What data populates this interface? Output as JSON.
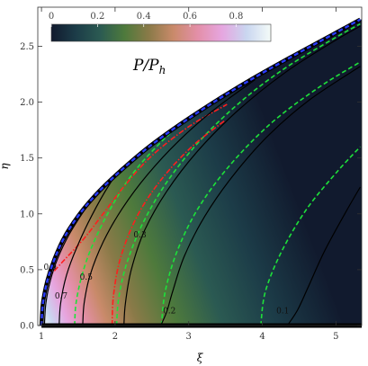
{
  "chart_data": {
    "type": "heatmap",
    "title": "",
    "xlabel": "ξ",
    "ylabel": "η",
    "xlim": [
      0.95,
      5.35
    ],
    "ylim": [
      0.0,
      2.85
    ],
    "x_ticks": [
      1,
      2,
      3,
      4,
      5
    ],
    "y_ticks": [
      0.0,
      0.5,
      1.0,
      1.5,
      2.0,
      2.5
    ],
    "x_tick_labels": [
      "1",
      "2",
      "3",
      "4",
      "5"
    ],
    "y_tick_labels": [
      "0.0",
      "0.5",
      "1.0",
      "1.5",
      "2.0",
      "2.5"
    ],
    "colorbar": {
      "label_main": "P/P",
      "label_sub": "h",
      "ticks": [
        0,
        0.2,
        0.4,
        0.6,
        0.8
      ],
      "tick_labels": [
        "0",
        "0.2",
        "0.4",
        "0.6",
        "0.8"
      ],
      "colors": [
        "#111a2e",
        "#1c3c48",
        "#2b5a52",
        "#4e7a3c",
        "#8a7a48",
        "#c98a6a",
        "#e38fa8",
        "#e6a6e0",
        "#c9d6f0",
        "#f4fbf8"
      ]
    },
    "boundary": {
      "description": "domain edge",
      "points": [
        [
          1.0,
          0.0
        ],
        [
          1.02,
          0.2
        ],
        [
          1.08,
          0.4
        ],
        [
          1.18,
          0.6
        ],
        [
          1.32,
          0.8
        ],
        [
          1.52,
          1.0
        ],
        [
          1.78,
          1.2
        ],
        [
          2.1,
          1.4
        ],
        [
          2.46,
          1.6
        ],
        [
          2.88,
          1.8
        ],
        [
          3.34,
          2.0
        ],
        [
          3.84,
          2.2
        ],
        [
          4.38,
          2.4
        ],
        [
          4.94,
          2.6
        ],
        [
          5.33,
          2.74
        ]
      ]
    },
    "solid_contours": [
      {
        "level": "0.9",
        "label": "0.9",
        "label_at": [
          1.03,
          0.5
        ],
        "points": [
          [
            1.04,
            0.0
          ],
          [
            1.06,
            0.2
          ],
          [
            1.12,
            0.4
          ],
          [
            1.22,
            0.6
          ],
          [
            1.38,
            0.82
          ],
          [
            1.6,
            1.05
          ]
        ]
      },
      {
        "level": "0.7",
        "label": "0.7",
        "label_at": [
          1.18,
          0.24
        ],
        "points": [
          [
            1.24,
            0.0
          ],
          [
            1.26,
            0.2
          ],
          [
            1.34,
            0.45
          ],
          [
            1.48,
            0.7
          ],
          [
            1.68,
            0.98
          ],
          [
            1.92,
            1.26
          ],
          [
            2.18,
            1.5
          ]
        ]
      },
      {
        "level": "0.5",
        "label": "0.5",
        "label_at": [
          1.52,
          0.41
        ],
        "points": [
          [
            1.56,
            0.0
          ],
          [
            1.58,
            0.2
          ],
          [
            1.66,
            0.45
          ],
          [
            1.84,
            0.75
          ],
          [
            2.1,
            1.05
          ],
          [
            2.44,
            1.35
          ],
          [
            2.86,
            1.65
          ],
          [
            3.34,
            1.93
          ],
          [
            3.9,
            2.2
          ]
        ]
      },
      {
        "level": "0.3",
        "label": "0.3",
        "label_at": [
          2.25,
          0.79
        ],
        "points": [
          [
            2.12,
            0.0
          ],
          [
            2.14,
            0.2
          ],
          [
            2.22,
            0.5
          ],
          [
            2.4,
            0.85
          ],
          [
            2.7,
            1.2
          ],
          [
            3.12,
            1.56
          ],
          [
            3.66,
            1.92
          ],
          [
            4.3,
            2.26
          ],
          [
            4.96,
            2.54
          ],
          [
            5.33,
            2.68
          ]
        ]
      },
      {
        "level": "0.2",
        "label": "0.2",
        "label_at": [
          2.65,
          0.11
        ],
        "points": [
          [
            2.62,
            0.0
          ],
          [
            2.7,
            0.12
          ],
          [
            2.78,
            0.3
          ],
          [
            2.94,
            0.62
          ],
          [
            3.22,
            0.98
          ],
          [
            3.6,
            1.34
          ],
          [
            4.08,
            1.7
          ],
          [
            4.64,
            2.02
          ],
          [
            5.33,
            2.32
          ]
        ]
      },
      {
        "level": "0.1",
        "label": "0.1",
        "label_at": [
          4.19,
          0.11
        ],
        "points": [
          [
            4.34,
            0.0
          ],
          [
            4.48,
            0.14
          ],
          [
            4.62,
            0.34
          ],
          [
            4.84,
            0.66
          ],
          [
            5.12,
            1.0
          ],
          [
            5.33,
            1.24
          ]
        ]
      }
    ],
    "green_dashed_contours": [
      {
        "points": [
          [
            1.45,
            0.0
          ],
          [
            1.47,
            0.2
          ],
          [
            1.55,
            0.45
          ],
          [
            1.7,
            0.73
          ],
          [
            1.94,
            1.05
          ],
          [
            2.24,
            1.36
          ],
          [
            2.62,
            1.64
          ],
          [
            3.05,
            1.9
          ]
        ]
      },
      {
        "points": [
          [
            2.02,
            0.0
          ],
          [
            2.05,
            0.25
          ],
          [
            2.16,
            0.56
          ],
          [
            2.38,
            0.92
          ],
          [
            2.72,
            1.3
          ],
          [
            3.16,
            1.66
          ],
          [
            3.7,
            2.0
          ],
          [
            4.3,
            2.3
          ],
          [
            5.0,
            2.58
          ],
          [
            5.33,
            2.7
          ]
        ]
      },
      {
        "points": [
          [
            2.63,
            0.0
          ],
          [
            2.68,
            0.3
          ],
          [
            2.84,
            0.66
          ],
          [
            3.12,
            1.04
          ],
          [
            3.54,
            1.42
          ],
          [
            4.1,
            1.8
          ],
          [
            4.74,
            2.12
          ],
          [
            5.33,
            2.36
          ]
        ]
      },
      {
        "points": [
          [
            3.98,
            0.0
          ],
          [
            4.04,
            0.3
          ],
          [
            4.26,
            0.66
          ],
          [
            4.6,
            1.04
          ],
          [
            5.02,
            1.38
          ],
          [
            5.33,
            1.6
          ]
        ]
      }
    ],
    "red_dashdot_contours": [
      {
        "points": [
          [
            1.02,
            0.5
          ],
          [
            1.14,
            0.62
          ],
          [
            1.34,
            0.82
          ],
          [
            1.6,
            1.05
          ],
          [
            1.86,
            1.25
          ]
        ]
      },
      {
        "points": [
          [
            1.08,
            0.42
          ],
          [
            1.3,
            0.58
          ],
          [
            1.58,
            0.78
          ],
          [
            1.86,
            1.02
          ],
          [
            2.14,
            1.26
          ],
          [
            2.5,
            1.52
          ],
          [
            3.0,
            1.78
          ],
          [
            3.52,
            1.98
          ]
        ]
      },
      {
        "points": [
          [
            1.96,
            0.0
          ],
          [
            1.98,
            0.28
          ],
          [
            2.08,
            0.62
          ],
          [
            2.3,
            0.98
          ],
          [
            2.62,
            1.3
          ],
          [
            3.04,
            1.6
          ],
          [
            3.5,
            1.84
          ]
        ]
      }
    ]
  }
}
